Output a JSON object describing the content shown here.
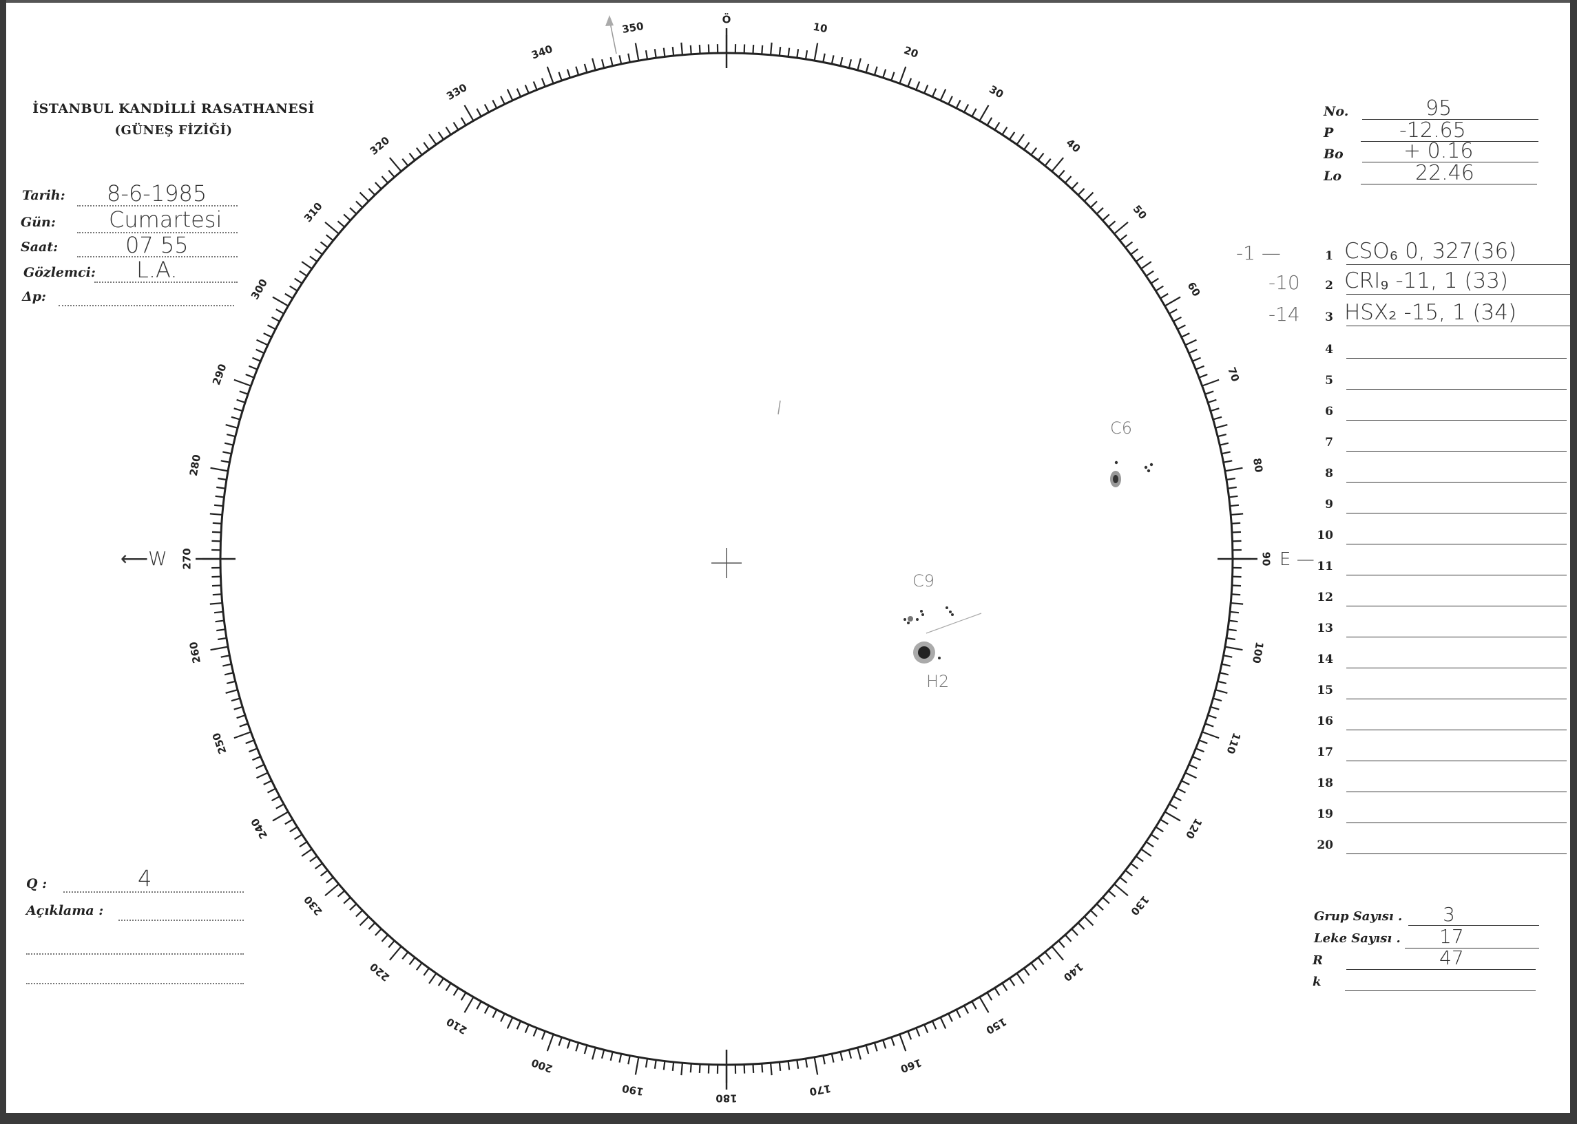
{
  "header": {
    "title": "İSTANBUL KANDİLLİ RASATHANESİ",
    "subtitle": "(GÜNEŞ FİZİĞİ)"
  },
  "observation": {
    "date_label": "Tarih:",
    "date_value": "8-6-1985",
    "day_label": "Gün:",
    "day_value": "Cumartesi",
    "time_label": "Saat:",
    "time_value": "07 55",
    "observer_label": "Gözlemci:",
    "observer_value": "L.A.",
    "delta_p_label": "Δp:",
    "delta_p_value": ""
  },
  "ephemeris": {
    "no_label": "No.",
    "no_value": "95",
    "p_label": "P",
    "p_value": "-12.65",
    "bo_label": "Bo",
    "bo_value": "+ 0.16",
    "lo_label": "Lo",
    "lo_value": "22.46"
  },
  "groups": [
    {
      "num": "1",
      "margin": "-1 —",
      "value": "CSO₆  0, 327(36)"
    },
    {
      "num": "2",
      "margin": "-10",
      "value": "CRI₉ -11,  1 (33)"
    },
    {
      "num": "3",
      "margin": "-14",
      "value": "HSX₂ -15,  1 (34)"
    },
    {
      "num": "4",
      "margin": "",
      "value": ""
    },
    {
      "num": "5",
      "margin": "",
      "value": ""
    },
    {
      "num": "6",
      "margin": "",
      "value": ""
    },
    {
      "num": "7",
      "margin": "",
      "value": ""
    },
    {
      "num": "8",
      "margin": "",
      "value": ""
    },
    {
      "num": "9",
      "margin": "",
      "value": ""
    },
    {
      "num": "10",
      "margin": "",
      "value": ""
    },
    {
      "num": "11",
      "margin": "",
      "value": ""
    },
    {
      "num": "12",
      "margin": "",
      "value": ""
    },
    {
      "num": "13",
      "margin": "",
      "value": ""
    },
    {
      "num": "14",
      "margin": "",
      "value": ""
    },
    {
      "num": "15",
      "margin": "",
      "value": ""
    },
    {
      "num": "16",
      "margin": "",
      "value": ""
    },
    {
      "num": "17",
      "margin": "",
      "value": ""
    },
    {
      "num": "18",
      "margin": "",
      "value": ""
    },
    {
      "num": "19",
      "margin": "",
      "value": ""
    },
    {
      "num": "20",
      "margin": "",
      "value": ""
    }
  ],
  "summary": {
    "group_count_label": "Grup Sayısı .",
    "group_count_value": "3",
    "spot_count_label": "Leke Sayısı .",
    "spot_count_value": "17",
    "r_label": "R",
    "r_value": "47",
    "k_label": "k",
    "k_value": ""
  },
  "quality": {
    "q_label": "Q :",
    "q_value": "4",
    "remark_label": "Açıklama :",
    "remark_value": ""
  },
  "disc": {
    "west_label": "W",
    "east_label": "E",
    "scale_labels": [
      "Ö",
      "10",
      "20",
      "30",
      "40",
      "50",
      "60",
      "70",
      "80",
      "90",
      "100",
      "110",
      "120",
      "130",
      "140",
      "150",
      "160",
      "170",
      "180",
      "190",
      "200",
      "210",
      "220",
      "230",
      "240",
      "250",
      "260",
      "270",
      "280",
      "290",
      "300",
      "310",
      "320",
      "330",
      "340",
      "350"
    ],
    "spot_groups": [
      {
        "label": "C6"
      },
      {
        "label": "C9"
      },
      {
        "label": "H2"
      }
    ]
  },
  "colors": {
    "ink": "#222222",
    "pencil": "#555555",
    "frame": "#3a3a3a"
  }
}
